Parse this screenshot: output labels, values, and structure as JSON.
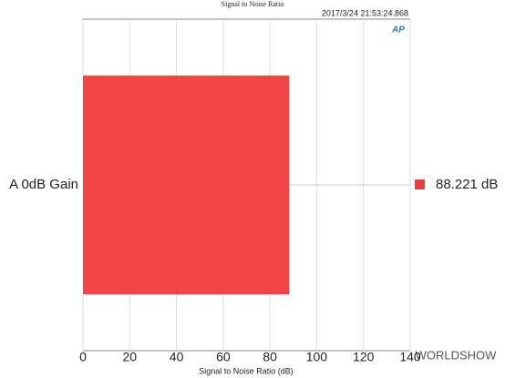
{
  "chart_data": {
    "type": "bar",
    "orientation": "horizontal",
    "title": "Signal to Noise Ratio",
    "timestamp": "2017/3/24 21:53:24.868",
    "logo": "AP",
    "categories": [
      "A 0dB Gain"
    ],
    "values": [
      88.221
    ],
    "value_labels": [
      "88.221 dB"
    ],
    "color": "#f23b3b",
    "xlabel": "Signal to Noise Ratio (dB)",
    "xlim": [
      0,
      140
    ],
    "xticks": [
      0,
      20,
      40,
      60,
      80,
      100,
      120,
      140
    ],
    "grid": true,
    "watermark": "WORLDSHOW"
  }
}
